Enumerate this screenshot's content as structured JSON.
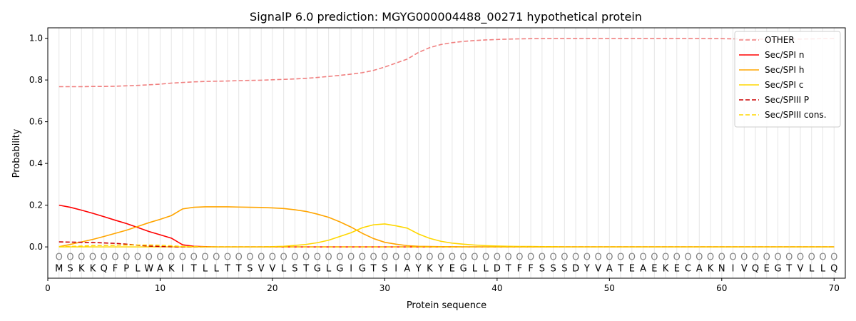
{
  "chart_data": {
    "type": "line",
    "title": "SignalP 6.0 prediction: MGYG000004488_00271 hypothetical protein",
    "xlabel": "Protein sequence",
    "ylabel": "Probability",
    "xlim": [
      0,
      71
    ],
    "ylim": [
      -0.15,
      1.05
    ],
    "xticks": [
      0,
      10,
      20,
      30,
      40,
      50,
      60,
      70
    ],
    "yticks": [
      0.0,
      0.2,
      0.4,
      0.6,
      0.8,
      1.0
    ],
    "ytick_labels": [
      "0.0",
      "0.2",
      "0.4",
      "0.6",
      "0.8",
      "1.0"
    ],
    "grid": "vertical lines at each residue",
    "legend_position": "top-right",
    "sequence": [
      "M",
      "S",
      "K",
      "K",
      "Q",
      "F",
      "P",
      "L",
      "W",
      "A",
      "K",
      "I",
      "T",
      "L",
      "L",
      "T",
      "T",
      "S",
      "V",
      "V",
      "L",
      "S",
      "T",
      "G",
      "L",
      "G",
      "I",
      "G",
      "T",
      "S",
      "I",
      "A",
      "Y",
      "K",
      "Y",
      "E",
      "G",
      "L",
      "L",
      "D",
      "T",
      "F",
      "F",
      "S",
      "S",
      "S",
      "D",
      "Y",
      "V",
      "A",
      "T",
      "E",
      "A",
      "E",
      "K",
      "E",
      "C",
      "A",
      "K",
      "N",
      "I",
      "V",
      "Q",
      "E",
      "G",
      "T",
      "V",
      "L",
      "L",
      "Q"
    ],
    "marker_label": "O",
    "marker_y": -0.045,
    "residue_label_y": -0.1,
    "x": [
      1,
      2,
      3,
      4,
      5,
      6,
      7,
      8,
      9,
      10,
      11,
      12,
      13,
      14,
      15,
      16,
      17,
      18,
      19,
      20,
      21,
      22,
      23,
      24,
      25,
      26,
      27,
      28,
      29,
      30,
      31,
      32,
      33,
      34,
      35,
      36,
      37,
      38,
      39,
      40,
      41,
      42,
      43,
      44,
      45,
      46,
      47,
      48,
      49,
      50,
      51,
      52,
      53,
      54,
      55,
      56,
      57,
      58,
      59,
      60,
      61,
      62,
      63,
      64,
      65,
      66,
      67,
      68,
      69,
      70
    ],
    "series": [
      {
        "name": "OTHER",
        "color": "#f08080",
        "dash": "dashed",
        "values": [
          0.768,
          0.768,
          0.768,
          0.769,
          0.769,
          0.77,
          0.772,
          0.774,
          0.777,
          0.78,
          0.785,
          0.788,
          0.791,
          0.793,
          0.794,
          0.795,
          0.797,
          0.798,
          0.799,
          0.801,
          0.803,
          0.805,
          0.808,
          0.812,
          0.817,
          0.822,
          0.828,
          0.835,
          0.846,
          0.862,
          0.881,
          0.9,
          0.932,
          0.955,
          0.97,
          0.979,
          0.985,
          0.989,
          0.992,
          0.994,
          0.996,
          0.997,
          0.998,
          0.998,
          0.999,
          0.999,
          0.999,
          0.999,
          0.999,
          0.999,
          0.999,
          0.999,
          0.999,
          0.999,
          0.999,
          0.999,
          0.999,
          0.999,
          0.998,
          0.998,
          0.997,
          0.997,
          0.996,
          0.996,
          0.996,
          0.996,
          0.996,
          0.997,
          0.998,
          0.999
        ]
      },
      {
        "name": "Sec/SPI n",
        "color": "#ff0000",
        "dash": "solid",
        "values": [
          0.2,
          0.19,
          0.176,
          0.161,
          0.145,
          0.128,
          0.112,
          0.093,
          0.074,
          0.058,
          0.042,
          0.01,
          0.003,
          0.001,
          0,
          0,
          0,
          0,
          0,
          0,
          0,
          0,
          0,
          0,
          0,
          0,
          0,
          0,
          0,
          0,
          0,
          0,
          0,
          0,
          0,
          0,
          0,
          0,
          0,
          0,
          0,
          0,
          0,
          0,
          0,
          0,
          0,
          0,
          0,
          0,
          0,
          0,
          0,
          0,
          0,
          0,
          0,
          0,
          0,
          0,
          0,
          0,
          0,
          0,
          0,
          0,
          0,
          0,
          0,
          0
        ]
      },
      {
        "name": "Sec/SPI h",
        "color": "#ffa500",
        "dash": "solid",
        "values": [
          0.001,
          0.012,
          0.024,
          0.036,
          0.05,
          0.065,
          0.08,
          0.098,
          0.116,
          0.132,
          0.15,
          0.182,
          0.19,
          0.192,
          0.192,
          0.192,
          0.191,
          0.19,
          0.189,
          0.187,
          0.184,
          0.178,
          0.17,
          0.157,
          0.142,
          0.12,
          0.095,
          0.065,
          0.04,
          0.022,
          0.013,
          0.006,
          0.003,
          0.002,
          0.001,
          0.001,
          0,
          0,
          0,
          0,
          0,
          0,
          0,
          0,
          0,
          0,
          0,
          0,
          0,
          0,
          0,
          0,
          0,
          0,
          0,
          0,
          0,
          0,
          0,
          0,
          0,
          0,
          0,
          0,
          0,
          0,
          0,
          0,
          0,
          0
        ]
      },
      {
        "name": "Sec/SPI c",
        "color": "#ffd700",
        "dash": "solid",
        "values": [
          0,
          0,
          0,
          0,
          0,
          0,
          0,
          0,
          0,
          0,
          0,
          0,
          0,
          0,
          0,
          0,
          0,
          0,
          0,
          0.001,
          0.003,
          0.007,
          0.012,
          0.02,
          0.032,
          0.05,
          0.068,
          0.092,
          0.106,
          0.11,
          0.101,
          0.09,
          0.062,
          0.041,
          0.027,
          0.018,
          0.013,
          0.009,
          0.006,
          0.004,
          0.003,
          0.002,
          0.002,
          0.001,
          0.001,
          0,
          0,
          0,
          0,
          0,
          0,
          0,
          0,
          0,
          0,
          0,
          0,
          0,
          0,
          0,
          0,
          0,
          0,
          0,
          0,
          0,
          0,
          0,
          0,
          0
        ]
      },
      {
        "name": "Sec/SPIII P",
        "color": "#cc0000",
        "dash": "dashed",
        "values": [
          0.024,
          0.023,
          0.022,
          0.021,
          0.019,
          0.017,
          0.013,
          0.008,
          0.004,
          0.002,
          0.001,
          0,
          0,
          0,
          0,
          0,
          0,
          0,
          0,
          0,
          0,
          0,
          0,
          0,
          0,
          0,
          0,
          0,
          0,
          0,
          0,
          0,
          0,
          0,
          0,
          0,
          0,
          0,
          0,
          0,
          0,
          0,
          0,
          0,
          0,
          0,
          0,
          0,
          0,
          0,
          0,
          0,
          0,
          0,
          0,
          0,
          0,
          0,
          0,
          0,
          0,
          0,
          0,
          0,
          0,
          0,
          0,
          0,
          0,
          0
        ]
      },
      {
        "name": "Sec/SPIII cons.",
        "color": "#ffd700",
        "dash": "dashed",
        "values": [
          0.001,
          0.002,
          0.004,
          0.006,
          0.007,
          0.008,
          0.009,
          0.009,
          0.009,
          0.008,
          0.005,
          0.002,
          0.001,
          0,
          0,
          0,
          0,
          0,
          0,
          0,
          0,
          0,
          0,
          0,
          0,
          0,
          0,
          0,
          0,
          0,
          0,
          0,
          0,
          0,
          0,
          0,
          0,
          0,
          0,
          0,
          0,
          0,
          0,
          0,
          0,
          0,
          0,
          0,
          0,
          0,
          0,
          0,
          0,
          0,
          0,
          0,
          0,
          0,
          0,
          0,
          0,
          0,
          0,
          0,
          0,
          0,
          0,
          0,
          0,
          0
        ]
      }
    ]
  }
}
